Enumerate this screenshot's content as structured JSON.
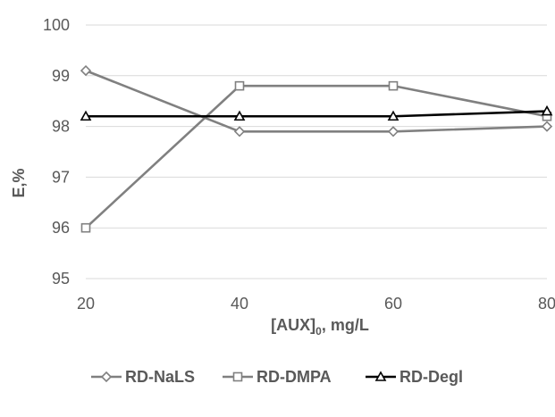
{
  "chart_data": {
    "type": "line",
    "x": [
      20,
      40,
      60,
      80
    ],
    "series": [
      {
        "name": "RD-NaLS",
        "values": [
          99.1,
          97.9,
          97.9,
          98.0
        ],
        "marker": "diamond",
        "color": "#808080"
      },
      {
        "name": "RD-DMPA",
        "values": [
          96.0,
          98.8,
          98.8,
          98.2
        ],
        "marker": "square",
        "color": "#808080"
      },
      {
        "name": "RD-Degl",
        "values": [
          98.2,
          98.2,
          98.2,
          98.3
        ],
        "marker": "triangle",
        "color": "#000000"
      }
    ],
    "xlabel_main": "[AUX]",
    "xlabel_sub": "0",
    "xlabel_rest": ", mg/L",
    "ylabel": "E,%",
    "xlim": [
      20,
      80
    ],
    "ylim": [
      95,
      100
    ],
    "yticks": [
      95,
      96,
      97,
      98,
      99,
      100
    ],
    "xticks": [
      20,
      40,
      60,
      80
    ],
    "grid": true,
    "legend_position": "bottom"
  }
}
